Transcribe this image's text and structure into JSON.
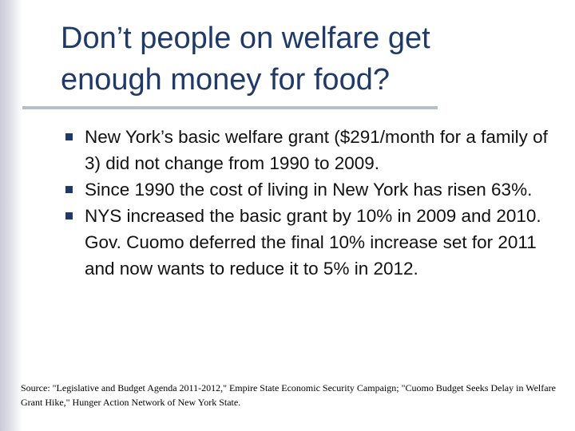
{
  "slide": {
    "title_line1": "Don’t people on welfare get",
    "title_line2": "enough money for food?",
    "bullets": [
      "New York’s basic welfare grant ($291/month for a family of 3) did not change from 1990 to 2009.",
      "Since 1990 the cost of living in New York has risen 63%.",
      "NYS increased the basic grant by 10% in 2009 and 2010. Gov. Cuomo deferred the final 10% increase set for 2011 and now wants to reduce it to 5% in 2012."
    ],
    "source": "Source: \"Legislative and Budget Agenda 2011-2012,\" Empire State Economic Security Campaign; \"Cuomo Budget Seeks Delay in Welfare Grant Hike,\" Hunger Action Network of New York State."
  },
  "colors": {
    "title": "#1f3a68",
    "bullet_marker": "#1f3a68",
    "rule": "#b9bdd0",
    "text": "#111111"
  }
}
